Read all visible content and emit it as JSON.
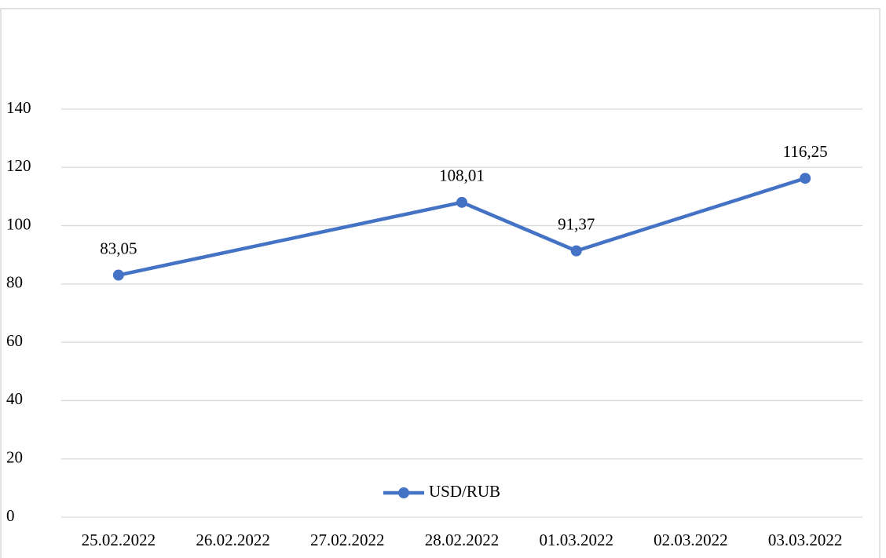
{
  "chart_data": {
    "type": "line",
    "x": [
      "25.02.2022",
      "28.02.2022",
      "01.03.2022",
      "03.03.2022"
    ],
    "xticks": [
      "25.02.2022",
      "26.02.2022",
      "27.02.2022",
      "28.02.2022",
      "01.03.2022",
      "02.03.2022",
      "03.03.2022"
    ],
    "series": [
      {
        "name": "USD/RUB",
        "color": "#4472c4",
        "values": [
          83.05,
          108.01,
          91.37,
          116.25
        ],
        "value_labels": [
          "83,05",
          "108,01",
          "91,37",
          "116,25"
        ]
      }
    ],
    "ylim": [
      0,
      140
    ],
    "yticks": [
      0,
      20,
      40,
      60,
      80,
      100,
      120,
      140
    ],
    "grid": true,
    "legend": "bottom"
  }
}
